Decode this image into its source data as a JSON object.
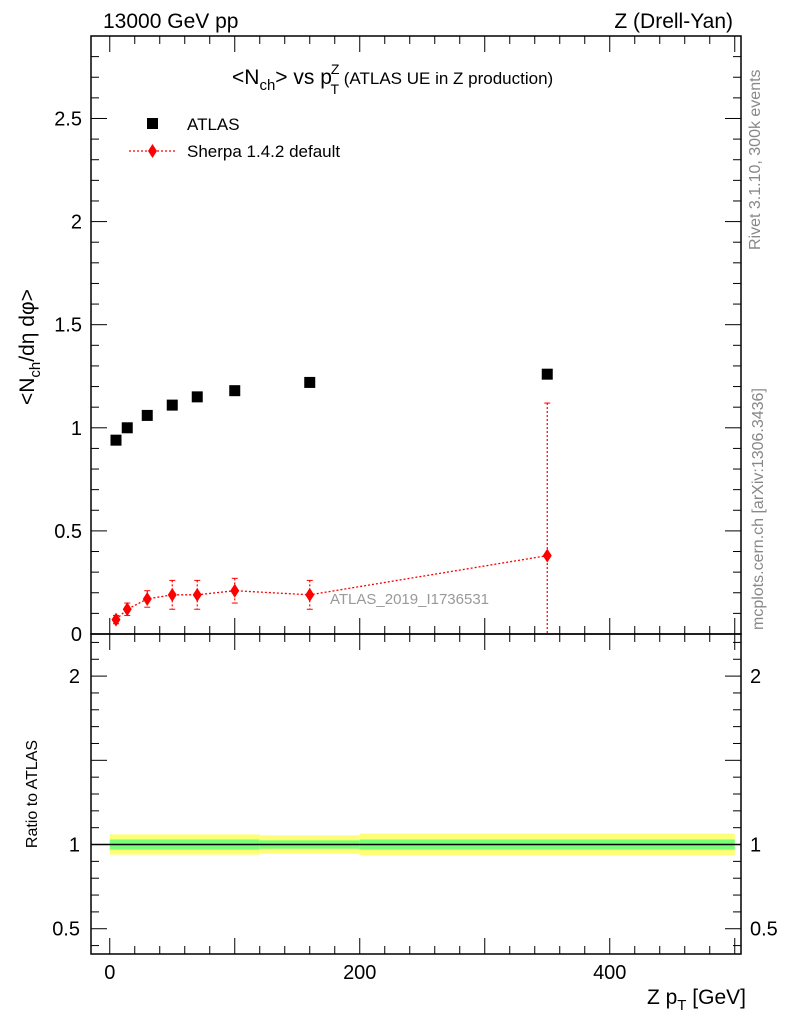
{
  "header": {
    "left": "13000 GeV pp",
    "right": "Z (Drell-Yan)"
  },
  "side_labels": {
    "rivet": "Rivet 3.1.10,  300k events",
    "mcplots": "mcplots.cern.ch [arXiv:1306.3436]"
  },
  "title": {
    "n_main": "<N",
    "n_sub": "ch",
    "vs": "> vs p",
    "pt_sup": "Z",
    "pt_sub": "T",
    "suffix": " (ATLAS UE in Z production)"
  },
  "legend": {
    "data_label": "ATLAS",
    "mc_label": "Sherpa 1.4.2 default"
  },
  "watermark": "ATLAS_2019_I1736531",
  "colors": {
    "data": "#000000",
    "mc": "#ff0000",
    "band_outer": "#ffff77",
    "band_inner": "#77ff77"
  },
  "chart_data": [
    {
      "type": "scatter",
      "panel": "main",
      "ylabel": {
        "pre": "<N",
        "sub": "ch",
        "post": "/dη dφ>"
      },
      "xlim": [
        -15,
        505
      ],
      "ylim": [
        0,
        2.9
      ],
      "yticks": [
        0,
        0.5,
        1,
        1.5,
        2,
        2.5
      ],
      "ytick_labels": [
        "0",
        "0.5",
        "1",
        "1.5",
        "2",
        "2.5"
      ],
      "series": [
        {
          "name": "ATLAS",
          "marker": "square",
          "x": [
            5,
            14,
            30,
            50,
            70,
            100,
            160,
            350
          ],
          "y": [
            0.94,
            1.0,
            1.06,
            1.11,
            1.15,
            1.18,
            1.22,
            1.26
          ]
        },
        {
          "name": "Sherpa 1.4.2 default",
          "marker": "diamond",
          "line": "dotted",
          "x": [
            5,
            14,
            30,
            50,
            70,
            100,
            160,
            350
          ],
          "y": [
            0.07,
            0.12,
            0.17,
            0.19,
            0.19,
            0.21,
            0.19,
            0.38
          ],
          "yerr": [
            0.02,
            0.03,
            0.04,
            0.07,
            0.07,
            0.06,
            0.07,
            0.74
          ]
        }
      ]
    },
    {
      "type": "line",
      "panel": "ratio",
      "ylabel": "Ratio to ATLAS",
      "xlabel": {
        "pre": "Z p",
        "sub": "T",
        "post": " [GeV]"
      },
      "xlim": [
        -15,
        505
      ],
      "ylim": [
        0.35,
        2.25
      ],
      "xticks": [
        0,
        200,
        400
      ],
      "xtick_labels": [
        "0",
        "200",
        "400"
      ],
      "yticks": [
        0.5,
        1,
        2
      ],
      "ytick_labels": [
        "0.5",
        "1",
        "2"
      ],
      "reference": 1.0,
      "band_segments": [
        {
          "x": [
            0,
            120
          ],
          "inner": 0.03,
          "outer": 0.06
        },
        {
          "x": [
            120,
            200
          ],
          "inner": 0.025,
          "outer": 0.055
        },
        {
          "x": [
            200,
            500
          ],
          "inner": 0.03,
          "outer": 0.065
        }
      ]
    }
  ]
}
